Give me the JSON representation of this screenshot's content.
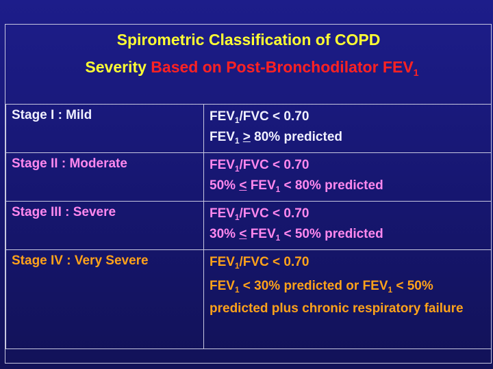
{
  "title": {
    "line1": "Spirometric Classification of COPD",
    "line2_yellow": "Severity ",
    "line2_red": "Based on Post-Bronchodilator FEV",
    "line2_sub": "1"
  },
  "stages": [
    {
      "label": "Stage I :  Mild",
      "ratio": {
        "pre": "FEV",
        "sub": "1",
        "post": "/FVC < 0.70"
      },
      "fev": {
        "pre": "FEV",
        "sub": "1",
        "op": ">",
        "post": " 80% predicted"
      }
    },
    {
      "label": "Stage II : Moderate",
      "ratio": {
        "pre": "FEV",
        "sub": "1",
        "post": "/FVC < 0.70"
      },
      "fev": {
        "pre": "50% ",
        "op": "<",
        "mid": " FEV",
        "sub": "1",
        "post": " < 80% predicted"
      }
    },
    {
      "label": "Stage III : Severe",
      "ratio": {
        "pre": "FEV",
        "sub": "1",
        "post": "/FVC < 0.70"
      },
      "fev": {
        "pre": "30% ",
        "op": "<",
        "mid": " FEV",
        "sub": "1",
        "post": " < 50% predicted"
      }
    },
    {
      "label": "Stage IV : Very Severe",
      "ratio": {
        "pre": "FEV",
        "sub": "1",
        "post": "/FVC < 0.70"
      },
      "fev": {
        "pre": "FEV",
        "sub": "1",
        "mid": " < 30% predicted or FEV",
        "sub2": "1",
        "post": " < 50%"
      },
      "extra": "predicted plus chronic respiratory failure"
    }
  ],
  "colors": {
    "background": "#16166f",
    "title_yellow": "#ffff33",
    "title_red": "#ff2222",
    "stage1": "#f0f0ff",
    "stage2_3": "#ff88ee",
    "stage4": "#ffa21a",
    "border": "#c8c8e0"
  }
}
